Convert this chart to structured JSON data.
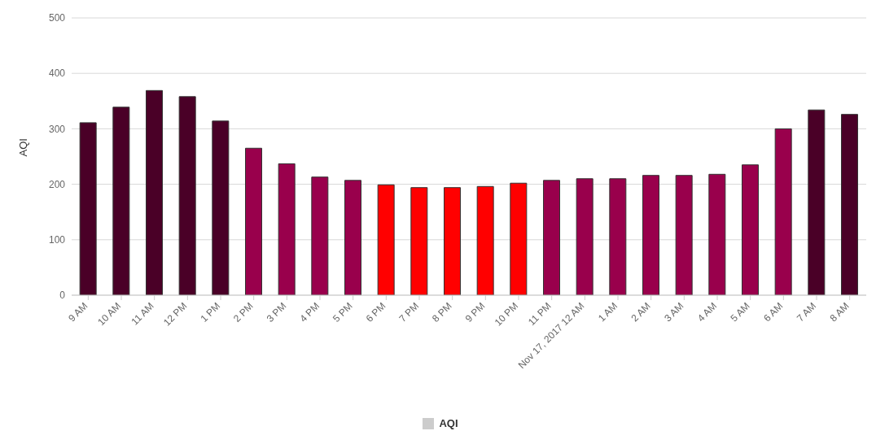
{
  "chart_data": {
    "type": "bar",
    "ylabel": "AQI",
    "categories": [
      "9 AM",
      "10 AM",
      "11 AM",
      "12 PM",
      "1 PM",
      "2 PM",
      "3 PM",
      "4 PM",
      "5 PM",
      "6 PM",
      "7 PM",
      "8 PM",
      "9 PM",
      "10 PM",
      "11 PM",
      "Nov 17, 2017 12 AM",
      "1 AM",
      "2 AM",
      "3 AM",
      "4 AM",
      "5 AM",
      "6 AM",
      "7 AM",
      "8 AM"
    ],
    "series": [
      {
        "name": "AQI",
        "color": "#cccccc",
        "values": [
          311,
          339,
          369,
          358,
          314,
          265,
          237,
          213,
          207,
          199,
          194,
          194,
          196,
          202,
          207,
          210,
          210,
          216,
          216,
          218,
          235,
          300,
          334,
          326
        ],
        "colors": [
          "#4a0027",
          "#4a0027",
          "#4a0027",
          "#4a0027",
          "#4a0027",
          "#99004c",
          "#99004c",
          "#99004c",
          "#99004c",
          "#ff0000",
          "#ff0000",
          "#ff0000",
          "#ff0000",
          "#ff0000",
          "#99004c",
          "#99004c",
          "#99004c",
          "#99004c",
          "#99004c",
          "#99004c",
          "#99004c",
          "#99004c",
          "#4a0027",
          "#4a0027"
        ]
      }
    ],
    "ylim": [
      0,
      500
    ],
    "yticks": [
      0,
      100,
      200,
      300,
      400,
      500
    ],
    "grid": "y",
    "legend": "bottom"
  }
}
